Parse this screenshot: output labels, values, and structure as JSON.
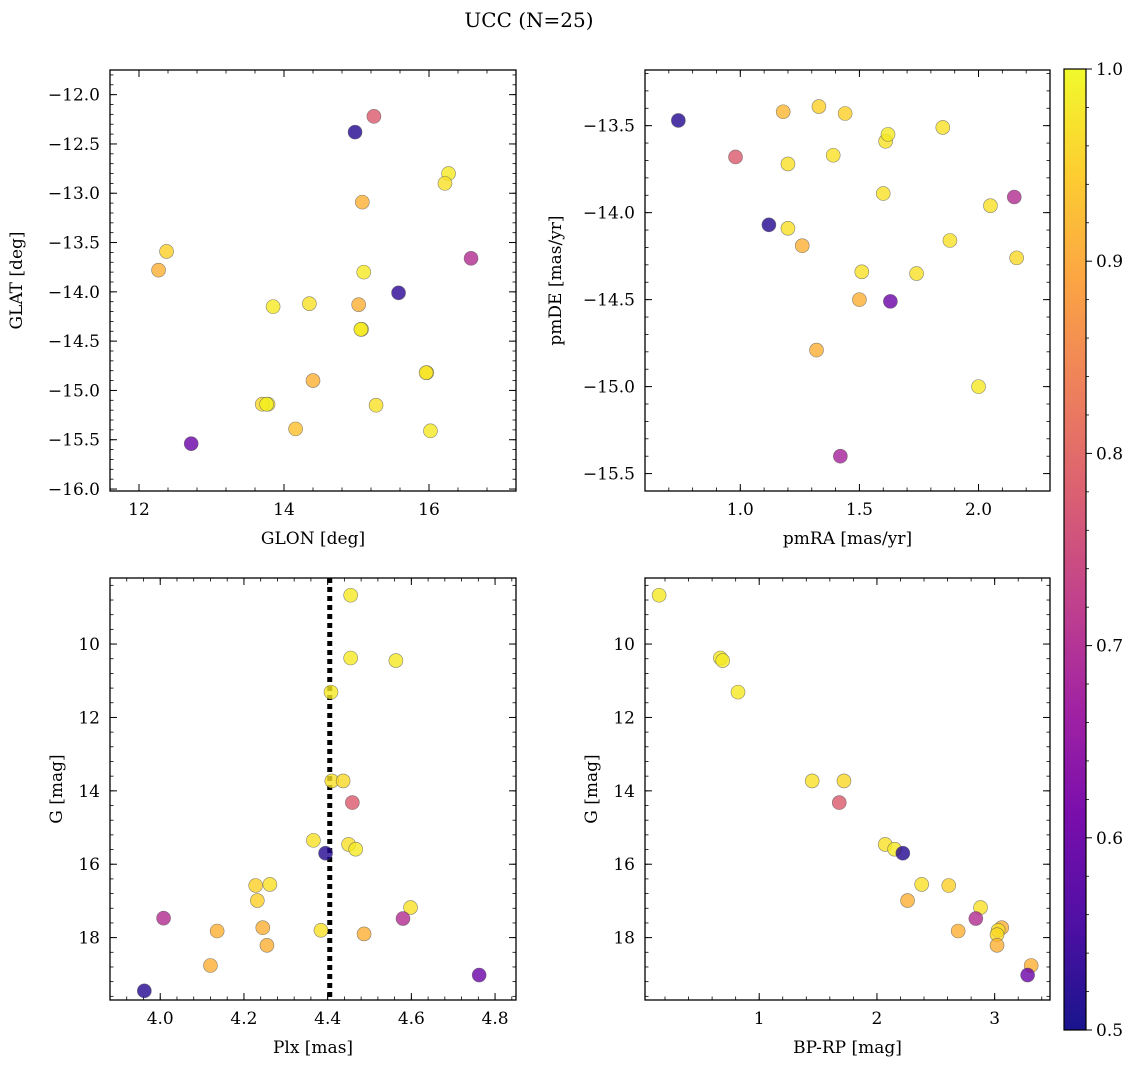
{
  "figure": {
    "title": "UCC (N=25)"
  },
  "colormap": {
    "name": "plasma",
    "stops": [
      "#0d0887",
      "#46039f",
      "#7201a8",
      "#9c179e",
      "#bd3786",
      "#d8576b",
      "#ed7953",
      "#fb9f3a",
      "#fdca26",
      "#f0f921"
    ],
    "marker_alpha": 0.8,
    "marker_edge_color": "#555555",
    "range": [
      0.5,
      1.0
    ],
    "ticks": [
      "0.5",
      "0.6",
      "0.7",
      "0.8",
      "0.9",
      "1.0"
    ]
  },
  "chart_data": [
    {
      "type": "scatter",
      "id": "glon-glat",
      "xlabel": "GLON [deg]",
      "ylabel": "GLAT [deg]",
      "xlim": [
        11.6,
        17.2
      ],
      "ylim": [
        -16.02,
        -11.75
      ],
      "xticks": [
        12,
        14,
        16
      ],
      "xtick_labels": [
        "12",
        "14",
        "16"
      ],
      "yticks": [
        -16.0,
        -15.5,
        -15.0,
        -14.5,
        -14.0,
        -13.5,
        -13.0,
        -12.5,
        -12.0
      ],
      "ytick_labels": [
        "−16.0",
        "−15.5",
        "−15.0",
        "−14.5",
        "−14.0",
        "−13.5",
        "−13.0",
        "−12.5",
        "−12.0"
      ],
      "points": [
        {
          "x": 14.98,
          "y": -12.38,
          "c": 0.52
        },
        {
          "x": 15.24,
          "y": -12.22,
          "c": 0.78
        },
        {
          "x": 16.27,
          "y": -12.8,
          "c": 0.98
        },
        {
          "x": 16.22,
          "y": -12.9,
          "c": 0.97
        },
        {
          "x": 15.08,
          "y": -13.09,
          "c": 0.91
        },
        {
          "x": 12.38,
          "y": -13.59,
          "c": 0.95
        },
        {
          "x": 12.27,
          "y": -13.78,
          "c": 0.91
        },
        {
          "x": 16.58,
          "y": -13.66,
          "c": 0.7
        },
        {
          "x": 15.1,
          "y": -13.8,
          "c": 0.98
        },
        {
          "x": 15.58,
          "y": -14.01,
          "c": 0.53
        },
        {
          "x": 13.85,
          "y": -14.15,
          "c": 0.98
        },
        {
          "x": 14.35,
          "y": -14.12,
          "c": 0.97
        },
        {
          "x": 15.03,
          "y": -14.13,
          "c": 0.91
        },
        {
          "x": 15.07,
          "y": -14.38,
          "c": 0.99
        },
        {
          "x": 15.06,
          "y": -14.38,
          "c": 0.98
        },
        {
          "x": 15.97,
          "y": -14.82,
          "c": 0.99
        },
        {
          "x": 15.96,
          "y": -14.82,
          "c": 0.97
        },
        {
          "x": 14.4,
          "y": -14.9,
          "c": 0.91
        },
        {
          "x": 13.78,
          "y": -15.14,
          "c": 0.97
        },
        {
          "x": 13.7,
          "y": -15.14,
          "c": 0.96
        },
        {
          "x": 15.27,
          "y": -15.15,
          "c": 0.97
        },
        {
          "x": 14.16,
          "y": -15.39,
          "c": 0.93
        },
        {
          "x": 16.02,
          "y": -15.41,
          "c": 0.98
        },
        {
          "x": 12.72,
          "y": -15.54,
          "c": 0.6
        },
        {
          "x": 13.76,
          "y": -15.14,
          "c": 0.99
        }
      ]
    },
    {
      "type": "scatter",
      "id": "pmra-pmde",
      "xlabel": "pmRA [mas/yr]",
      "ylabel": "pmDE [mas/yr]",
      "xlim": [
        0.6,
        2.3
      ],
      "ylim": [
        -15.6,
        -13.18
      ],
      "xticks": [
        1.0,
        1.5,
        2.0
      ],
      "xtick_labels": [
        "1.0",
        "1.5",
        "2.0"
      ],
      "yticks": [
        -15.5,
        -15.0,
        -14.5,
        -14.0,
        -13.5
      ],
      "ytick_labels": [
        "−15.5",
        "−15.0",
        "−14.5",
        "−14.0",
        "−13.5"
      ],
      "points": [
        {
          "x": 0.74,
          "y": -13.47,
          "c": 0.52
        },
        {
          "x": 0.98,
          "y": -13.68,
          "c": 0.78
        },
        {
          "x": 1.12,
          "y": -14.07,
          "c": 0.52
        },
        {
          "x": 1.18,
          "y": -13.42,
          "c": 0.92
        },
        {
          "x": 1.2,
          "y": -13.72,
          "c": 0.97
        },
        {
          "x": 1.2,
          "y": -14.09,
          "c": 0.97
        },
        {
          "x": 1.26,
          "y": -14.19,
          "c": 0.91
        },
        {
          "x": 1.32,
          "y": -14.79,
          "c": 0.91
        },
        {
          "x": 1.33,
          "y": -13.39,
          "c": 0.95
        },
        {
          "x": 1.39,
          "y": -13.67,
          "c": 0.97
        },
        {
          "x": 1.42,
          "y": -15.4,
          "c": 0.68
        },
        {
          "x": 1.44,
          "y": -13.43,
          "c": 0.95
        },
        {
          "x": 1.5,
          "y": -14.5,
          "c": 0.91
        },
        {
          "x": 1.51,
          "y": -14.34,
          "c": 0.97
        },
        {
          "x": 1.6,
          "y": -13.89,
          "c": 0.97
        },
        {
          "x": 1.61,
          "y": -13.59,
          "c": 0.97
        },
        {
          "x": 1.62,
          "y": -13.55,
          "c": 0.98
        },
        {
          "x": 1.63,
          "y": -14.51,
          "c": 0.6
        },
        {
          "x": 1.74,
          "y": -14.35,
          "c": 0.97
        },
        {
          "x": 1.85,
          "y": -13.51,
          "c": 0.97
        },
        {
          "x": 1.88,
          "y": -14.16,
          "c": 0.97
        },
        {
          "x": 2.0,
          "y": -15.0,
          "c": 0.98
        },
        {
          "x": 2.05,
          "y": -13.96,
          "c": 0.97
        },
        {
          "x": 2.15,
          "y": -13.91,
          "c": 0.7
        },
        {
          "x": 2.16,
          "y": -14.26,
          "c": 0.96
        }
      ]
    },
    {
      "type": "scatter",
      "id": "plx-g",
      "xlabel": "Plx [mas]",
      "ylabel": "G [mag]",
      "xlim": [
        3.88,
        4.85
      ],
      "ylim": [
        19.7,
        8.2
      ],
      "y_inverted": true,
      "vline": {
        "x": 4.405,
        "style": "dotted",
        "color": "#000000"
      },
      "xticks": [
        4.0,
        4.2,
        4.4,
        4.6,
        4.8
      ],
      "xtick_labels": [
        "4.0",
        "4.2",
        "4.4",
        "4.6",
        "4.8"
      ],
      "yticks": [
        10,
        12,
        14,
        16,
        18
      ],
      "ytick_labels": [
        "10",
        "12",
        "14",
        "16",
        "18"
      ],
      "points": [
        {
          "x": 4.455,
          "y": 8.67,
          "c": 0.98
        },
        {
          "x": 4.455,
          "y": 10.38,
          "c": 0.98
        },
        {
          "x": 4.563,
          "y": 10.45,
          "c": 0.98
        },
        {
          "x": 4.408,
          "y": 11.31,
          "c": 0.98
        },
        {
          "x": 4.41,
          "y": 13.73,
          "c": 0.97
        },
        {
          "x": 4.437,
          "y": 13.73,
          "c": 0.96
        },
        {
          "x": 4.459,
          "y": 14.32,
          "c": 0.78
        },
        {
          "x": 4.366,
          "y": 15.35,
          "c": 0.97
        },
        {
          "x": 4.45,
          "y": 15.46,
          "c": 0.97
        },
        {
          "x": 4.467,
          "y": 15.59,
          "c": 0.98
        },
        {
          "x": 4.395,
          "y": 15.7,
          "c": 0.52
        },
        {
          "x": 4.228,
          "y": 16.58,
          "c": 0.95
        },
        {
          "x": 4.262,
          "y": 16.55,
          "c": 0.97
        },
        {
          "x": 4.232,
          "y": 16.99,
          "c": 0.95
        },
        {
          "x": 4.598,
          "y": 17.18,
          "c": 0.97
        },
        {
          "x": 4.008,
          "y": 17.47,
          "c": 0.7
        },
        {
          "x": 4.58,
          "y": 17.48,
          "c": 0.7
        },
        {
          "x": 4.245,
          "y": 17.73,
          "c": 0.91
        },
        {
          "x": 4.136,
          "y": 17.82,
          "c": 0.91
        },
        {
          "x": 4.384,
          "y": 17.8,
          "c": 0.97
        },
        {
          "x": 4.487,
          "y": 17.9,
          "c": 0.91
        },
        {
          "x": 4.255,
          "y": 18.21,
          "c": 0.91
        },
        {
          "x": 4.12,
          "y": 18.76,
          "c": 0.91
        },
        {
          "x": 4.762,
          "y": 19.02,
          "c": 0.6
        },
        {
          "x": 3.962,
          "y": 19.45,
          "c": 0.52
        }
      ]
    },
    {
      "type": "scatter",
      "id": "bprp-g",
      "xlabel": "BP-RP [mag]",
      "ylabel": "G [mag]",
      "xlim": [
        0.03,
        3.47
      ],
      "ylim": [
        19.7,
        8.2
      ],
      "y_inverted": true,
      "xticks": [
        1,
        2,
        3
      ],
      "xtick_labels": [
        "1",
        "2",
        "3"
      ],
      "yticks": [
        10,
        12,
        14,
        16,
        18
      ],
      "ytick_labels": [
        "10",
        "12",
        "14",
        "16",
        "18"
      ],
      "points": [
        {
          "x": 0.15,
          "y": 8.67,
          "c": 0.98
        },
        {
          "x": 0.67,
          "y": 10.38,
          "c": 0.98
        },
        {
          "x": 0.69,
          "y": 10.45,
          "c": 0.98
        },
        {
          "x": 0.82,
          "y": 11.31,
          "c": 0.98
        },
        {
          "x": 1.45,
          "y": 13.73,
          "c": 0.97
        },
        {
          "x": 1.72,
          "y": 13.73,
          "c": 0.96
        },
        {
          "x": 1.68,
          "y": 14.32,
          "c": 0.78
        },
        {
          "x": 2.07,
          "y": 15.46,
          "c": 0.97
        },
        {
          "x": 2.15,
          "y": 15.59,
          "c": 0.98
        },
        {
          "x": 2.22,
          "y": 15.7,
          "c": 0.52
        },
        {
          "x": 2.38,
          "y": 16.55,
          "c": 0.97
        },
        {
          "x": 2.61,
          "y": 16.58,
          "c": 0.95
        },
        {
          "x": 2.26,
          "y": 16.99,
          "c": 0.91
        },
        {
          "x": 2.88,
          "y": 17.18,
          "c": 0.97
        },
        {
          "x": 2.84,
          "y": 17.48,
          "c": 0.7
        },
        {
          "x": 3.06,
          "y": 17.73,
          "c": 0.91
        },
        {
          "x": 2.69,
          "y": 17.82,
          "c": 0.91
        },
        {
          "x": 3.03,
          "y": 17.8,
          "c": 0.97
        },
        {
          "x": 3.02,
          "y": 17.92,
          "c": 0.96
        },
        {
          "x": 3.02,
          "y": 18.21,
          "c": 0.91
        },
        {
          "x": 3.31,
          "y": 18.76,
          "c": 0.91
        },
        {
          "x": 3.28,
          "y": 19.02,
          "c": 0.6
        }
      ]
    }
  ]
}
